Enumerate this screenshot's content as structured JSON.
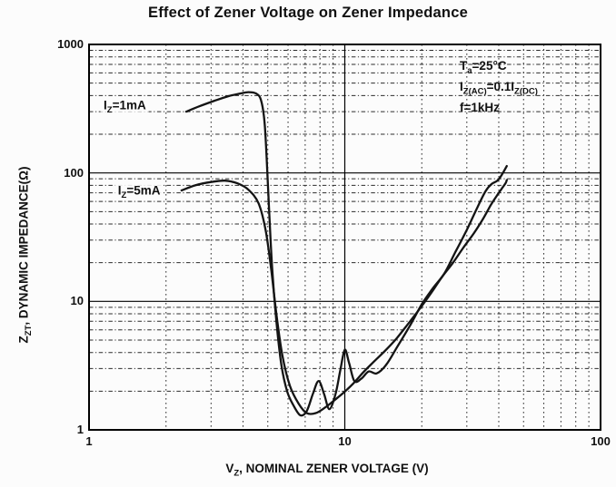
{
  "title": "Effect of Zener Voltage on Zener Impedance",
  "conditions": {
    "lines": [
      "T_{a}=25°C",
      "I_{Z(AC)}=0.1I_{Z(DC)}",
      "f=1kHz"
    ]
  },
  "chart_data": {
    "type": "line",
    "title": "Effect of Zener Voltage on Zener Impedance",
    "xlabel": "V_{Z}, NOMINAL ZENER VOLTAGE (V)",
    "ylabel": "Z_{ZT}, DYNAMIC IMPEDANCE(Ω)",
    "x_scale": "log",
    "y_scale": "log",
    "xlim": [
      1,
      100
    ],
    "ylim": [
      1,
      1000
    ],
    "grid": "dotted minor gridlines, solid major gridlines at x=10, y=10, y=100",
    "legend_position": "in-plot curve labels, upper left",
    "x_ticks": [
      {
        "value": 1,
        "label": "1"
      },
      {
        "value": 10,
        "label": "10"
      },
      {
        "value": 100,
        "label": "100"
      }
    ],
    "y_ticks": [
      {
        "value": 1,
        "label": "1"
      },
      {
        "value": 10,
        "label": "10"
      },
      {
        "value": 100,
        "label": "100"
      },
      {
        "value": 1000,
        "label": "1000"
      }
    ],
    "x_minor": [
      2,
      3,
      4,
      5,
      6,
      7,
      8,
      9,
      20,
      30,
      40,
      50,
      60,
      70,
      80,
      90
    ],
    "x_major": [
      10
    ],
    "y_minor": [
      2,
      3,
      4,
      5,
      6,
      7,
      8,
      9,
      20,
      30,
      40,
      50,
      60,
      70,
      80,
      90,
      200,
      300,
      400,
      500,
      600,
      700,
      800,
      900
    ],
    "y_major": [
      10,
      100
    ],
    "series": [
      {
        "name": "I_{Z}=1mA",
        "label_at": [
          1.38,
          335
        ],
        "points": [
          [
            2.4,
            300
          ],
          [
            2.7,
            330
          ],
          [
            3.1,
            365
          ],
          [
            3.5,
            395
          ],
          [
            3.9,
            415
          ],
          [
            4.2,
            425
          ],
          [
            4.5,
            415
          ],
          [
            4.7,
            370
          ],
          [
            4.85,
            255
          ],
          [
            4.95,
            130
          ],
          [
            5.05,
            55
          ],
          [
            5.2,
            18
          ],
          [
            5.4,
            7
          ],
          [
            5.65,
            3.2
          ],
          [
            5.95,
            2.0
          ],
          [
            6.3,
            1.55
          ],
          [
            6.7,
            1.3
          ],
          [
            7.1,
            1.4
          ],
          [
            7.5,
            1.9
          ],
          [
            7.9,
            2.4
          ],
          [
            8.3,
            1.9
          ],
          [
            8.7,
            1.45
          ],
          [
            9.2,
            1.9
          ],
          [
            9.6,
            2.9
          ],
          [
            10.0,
            4.2
          ],
          [
            10.4,
            3.3
          ],
          [
            10.9,
            2.4
          ],
          [
            11.6,
            2.5
          ],
          [
            12.4,
            2.85
          ],
          [
            13.3,
            2.75
          ],
          [
            14.5,
            3.2
          ],
          [
            16,
            4.4
          ],
          [
            18,
            6.5
          ],
          [
            20,
            9.5
          ],
          [
            22,
            12.5
          ],
          [
            24.5,
            16.5
          ],
          [
            27,
            24
          ],
          [
            30,
            36
          ],
          [
            33,
            54
          ],
          [
            35.5,
            72
          ],
          [
            37.5,
            82
          ],
          [
            39.5,
            87
          ],
          [
            41,
            96
          ],
          [
            43,
            113
          ]
        ]
      },
      {
        "name": "I_{Z}=5mA",
        "label_at": [
          1.57,
          73
        ],
        "points": [
          [
            2.3,
            73
          ],
          [
            2.6,
            80
          ],
          [
            3.0,
            85
          ],
          [
            3.4,
            87
          ],
          [
            3.8,
            83
          ],
          [
            4.2,
            74
          ],
          [
            4.6,
            58
          ],
          [
            4.9,
            36
          ],
          [
            5.15,
            18
          ],
          [
            5.4,
            8
          ],
          [
            5.7,
            3.8
          ],
          [
            6.1,
            2.2
          ],
          [
            6.6,
            1.6
          ],
          [
            7.1,
            1.35
          ],
          [
            7.7,
            1.35
          ],
          [
            8.4,
            1.5
          ],
          [
            9.1,
            1.7
          ],
          [
            9.9,
            1.95
          ],
          [
            10.8,
            2.3
          ],
          [
            11.8,
            2.8
          ],
          [
            13,
            3.4
          ],
          [
            14.5,
            4.2
          ],
          [
            16,
            5.2
          ],
          [
            18,
            7.0
          ],
          [
            20,
            9.2
          ],
          [
            22,
            12
          ],
          [
            24,
            15.5
          ],
          [
            26.5,
            20
          ],
          [
            29,
            26
          ],
          [
            32,
            34
          ],
          [
            34.5,
            43
          ],
          [
            37,
            55
          ],
          [
            39,
            65
          ],
          [
            41,
            75
          ],
          [
            42.5,
            83
          ],
          [
            43,
            88
          ]
        ]
      }
    ]
  },
  "colors": {
    "curve": "#141414",
    "grid_minor": "#2b2b2b",
    "grid_major": "#000000",
    "border": "#000000",
    "background": "#fcfcfc",
    "text": "#111111"
  }
}
